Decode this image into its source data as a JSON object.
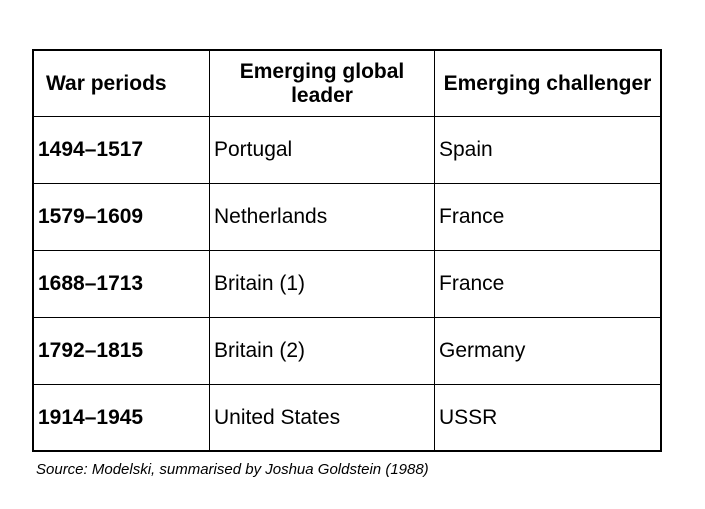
{
  "table": {
    "headers": [
      "War periods",
      "Emerging global leader",
      "Emerging challenger"
    ],
    "rows": [
      {
        "period": "1494–1517",
        "leader": "Portugal",
        "challenger": "Spain"
      },
      {
        "period": "1579–1609",
        "leader": "Netherlands",
        "challenger": "France"
      },
      {
        "period": "1688–1713",
        "leader": "Britain (1)",
        "challenger": "France"
      },
      {
        "period": "1792–1815",
        "leader": "Britain (2)",
        "challenger": "Germany"
      },
      {
        "period": "1914–1945",
        "leader": "United States",
        "challenger": "USSR"
      }
    ]
  },
  "source": "Source:  Modelski, summarised by Joshua Goldstein (1988)"
}
